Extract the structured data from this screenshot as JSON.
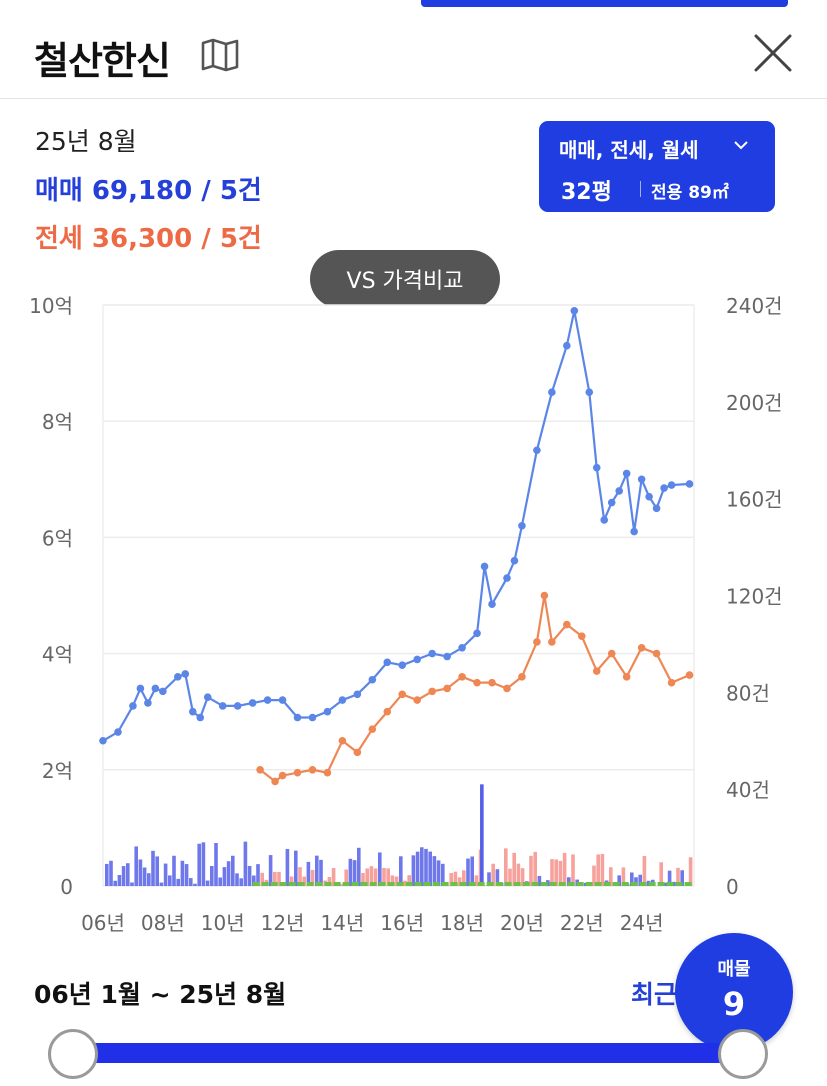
{
  "header": {
    "title": "철산한신",
    "map_icon": "map-icon",
    "close_icon": "close-icon"
  },
  "summary": {
    "period": "25년 8월",
    "sale": "매매 69,180 / 5건",
    "jeonse": "전세 36,300 / 5건"
  },
  "filter": {
    "types": "매매, 전세, 월세",
    "size": "32평",
    "area": "전용 89㎡",
    "background": "#1f3de0"
  },
  "vs_button": {
    "label": "VS 가격비교"
  },
  "chart_data": {
    "type": "line",
    "x_ticks": [
      "06년",
      "08년",
      "10년",
      "12년",
      "14년",
      "16년",
      "18년",
      "20년",
      "22년",
      "24년"
    ],
    "y_left": {
      "ticks": [
        "0",
        "2억",
        "4억",
        "6억",
        "8억",
        "10억"
      ],
      "range": [
        0,
        10
      ]
    },
    "y_right": {
      "ticks": [
        "0",
        "40건",
        "80건",
        "120건",
        "160건",
        "200건",
        "240건"
      ],
      "range": [
        0,
        240
      ]
    },
    "grid": true,
    "colors": {
      "sale": "#5b86e8",
      "jeonse": "#ef8754",
      "sale_volume": "#5560e8",
      "jeonse_volume": "#f4908a",
      "rent_volume": "#6cc04a"
    },
    "sale_series": [
      [
        2006.0,
        2.5
      ],
      [
        2006.5,
        2.65
      ],
      [
        2007.0,
        3.1
      ],
      [
        2007.25,
        3.4
      ],
      [
        2007.5,
        3.15
      ],
      [
        2007.75,
        3.4
      ],
      [
        2008.0,
        3.35
      ],
      [
        2008.5,
        3.6
      ],
      [
        2008.75,
        3.65
      ],
      [
        2009.0,
        3.0
      ],
      [
        2009.25,
        2.9
      ],
      [
        2009.5,
        3.25
      ],
      [
        2010.0,
        3.1
      ],
      [
        2010.5,
        3.1
      ],
      [
        2011.0,
        3.15
      ],
      [
        2011.5,
        3.2
      ],
      [
        2012.0,
        3.2
      ],
      [
        2012.5,
        2.9
      ],
      [
        2013.0,
        2.9
      ],
      [
        2013.5,
        3.0
      ],
      [
        2014.0,
        3.2
      ],
      [
        2014.5,
        3.3
      ],
      [
        2015.0,
        3.55
      ],
      [
        2015.5,
        3.85
      ],
      [
        2016.0,
        3.8
      ],
      [
        2016.5,
        3.9
      ],
      [
        2017.0,
        4.0
      ],
      [
        2017.5,
        3.95
      ],
      [
        2018.0,
        4.1
      ],
      [
        2018.5,
        4.35
      ],
      [
        2018.75,
        5.5
      ],
      [
        2019.0,
        4.85
      ],
      [
        2019.5,
        5.3
      ],
      [
        2019.75,
        5.6
      ],
      [
        2020.0,
        6.2
      ],
      [
        2020.5,
        7.5
      ],
      [
        2021.0,
        8.5
      ],
      [
        2021.5,
        9.3
      ],
      [
        2021.75,
        9.9
      ],
      [
        2022.25,
        8.5
      ],
      [
        2022.5,
        7.2
      ],
      [
        2022.75,
        6.3
      ],
      [
        2023.0,
        6.6
      ],
      [
        2023.25,
        6.8
      ],
      [
        2023.5,
        7.1
      ],
      [
        2023.75,
        6.1
      ],
      [
        2024.0,
        7.0
      ],
      [
        2024.25,
        6.7
      ],
      [
        2024.5,
        6.5
      ],
      [
        2024.75,
        6.85
      ],
      [
        2025.0,
        6.9
      ],
      [
        2025.6,
        6.92
      ]
    ],
    "jeonse_series": [
      [
        2011.25,
        2.0
      ],
      [
        2011.75,
        1.8
      ],
      [
        2012.0,
        1.9
      ],
      [
        2012.5,
        1.95
      ],
      [
        2013.0,
        2.0
      ],
      [
        2013.5,
        1.95
      ],
      [
        2014.0,
        2.5
      ],
      [
        2014.5,
        2.3
      ],
      [
        2015.0,
        2.7
      ],
      [
        2015.5,
        3.0
      ],
      [
        2016.0,
        3.3
      ],
      [
        2016.5,
        3.2
      ],
      [
        2017.0,
        3.35
      ],
      [
        2017.5,
        3.4
      ],
      [
        2018.0,
        3.6
      ],
      [
        2018.5,
        3.5
      ],
      [
        2019.0,
        3.5
      ],
      [
        2019.5,
        3.4
      ],
      [
        2020.0,
        3.6
      ],
      [
        2020.5,
        4.2
      ],
      [
        2020.75,
        5.0
      ],
      [
        2021.0,
        4.2
      ],
      [
        2021.5,
        4.5
      ],
      [
        2022.0,
        4.3
      ],
      [
        2022.5,
        3.7
      ],
      [
        2023.0,
        4.0
      ],
      [
        2023.5,
        3.6
      ],
      [
        2024.0,
        4.1
      ],
      [
        2024.5,
        4.0
      ],
      [
        2025.0,
        3.5
      ],
      [
        2025.6,
        3.63
      ]
    ],
    "volume_note_units": "건"
  },
  "range": {
    "label": "06년 1월 ~ 25년 8월",
    "recent": "최근"
  },
  "listing": {
    "label": "매물",
    "count": "9"
  }
}
